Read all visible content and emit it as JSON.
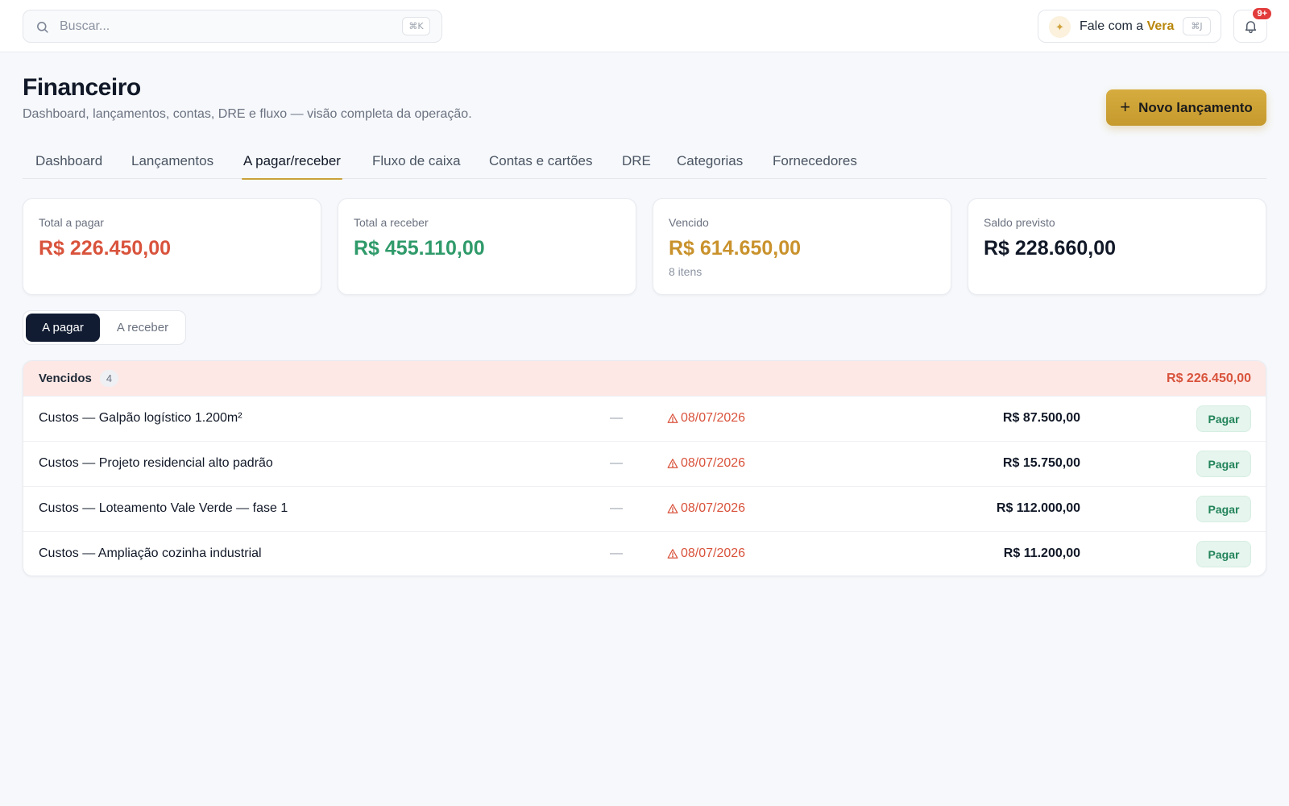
{
  "topbar": {
    "search": {
      "placeholder": "Buscar...",
      "shortcut": "⌘K"
    },
    "assistant": {
      "prefix": "Fale com a ",
      "name": "Vera",
      "shortcut": "⌘J"
    },
    "notifications": {
      "badge": "9+"
    }
  },
  "header": {
    "title": "Financeiro",
    "subtitle": "Dashboard, lançamentos, contas, DRE e fluxo — visão completa da operação.",
    "new_button": "Novo lançamento"
  },
  "tabs": [
    {
      "label": "Dashboard"
    },
    {
      "label": "Lançamentos"
    },
    {
      "label": "A pagar/receber",
      "active": true
    },
    {
      "label": "Fluxo de caixa"
    },
    {
      "label": "Contas e cartões"
    },
    {
      "label": "DRE"
    },
    {
      "label": "Categorias"
    },
    {
      "label": "Fornecedores"
    }
  ],
  "stats": [
    {
      "label": "Total a pagar",
      "value": "R$ 226.450,00",
      "sub": "",
      "color": "#d9533c"
    },
    {
      "label": "Total a receber",
      "value": "R$ 455.110,00",
      "sub": "",
      "color": "#2f9a6a"
    },
    {
      "label": "Vencido",
      "value": "R$ 614.650,00",
      "sub": "8 itens",
      "color": "#c9922c"
    },
    {
      "label": "Saldo previsto",
      "value": "R$ 228.660,00",
      "sub": "",
      "color": "#111827"
    }
  ],
  "segment": {
    "active": "A pagar",
    "inactive": "A receber"
  },
  "group": {
    "title": "Vencidos",
    "count": "4",
    "total": "R$ 226.450,00",
    "rows": [
      {
        "description": "Custos — Galpão logístico 1.200m²",
        "dash": "—",
        "due": "08/07/2026",
        "amount": "R$ 87.500,00",
        "action": "Pagar"
      },
      {
        "description": "Custos — Projeto residencial alto padrão",
        "dash": "—",
        "due": "08/07/2026",
        "amount": "R$ 15.750,00",
        "action": "Pagar"
      },
      {
        "description": "Custos — Loteamento Vale Verde — fase 1",
        "dash": "—",
        "due": "08/07/2026",
        "amount": "R$ 112.000,00",
        "action": "Pagar"
      },
      {
        "description": "Custos — Ampliação cozinha industrial",
        "dash": "—",
        "due": "08/07/2026",
        "amount": "R$ 11.200,00",
        "action": "Pagar"
      }
    ]
  },
  "colors": {
    "accent": "#c9a13a",
    "danger": "#d9533c",
    "success": "#2f9a6a",
    "navy": "#111c33"
  },
  "icons": [
    "search-icon",
    "sparkle-icon",
    "bell-icon",
    "plus-icon",
    "warning-icon"
  ]
}
